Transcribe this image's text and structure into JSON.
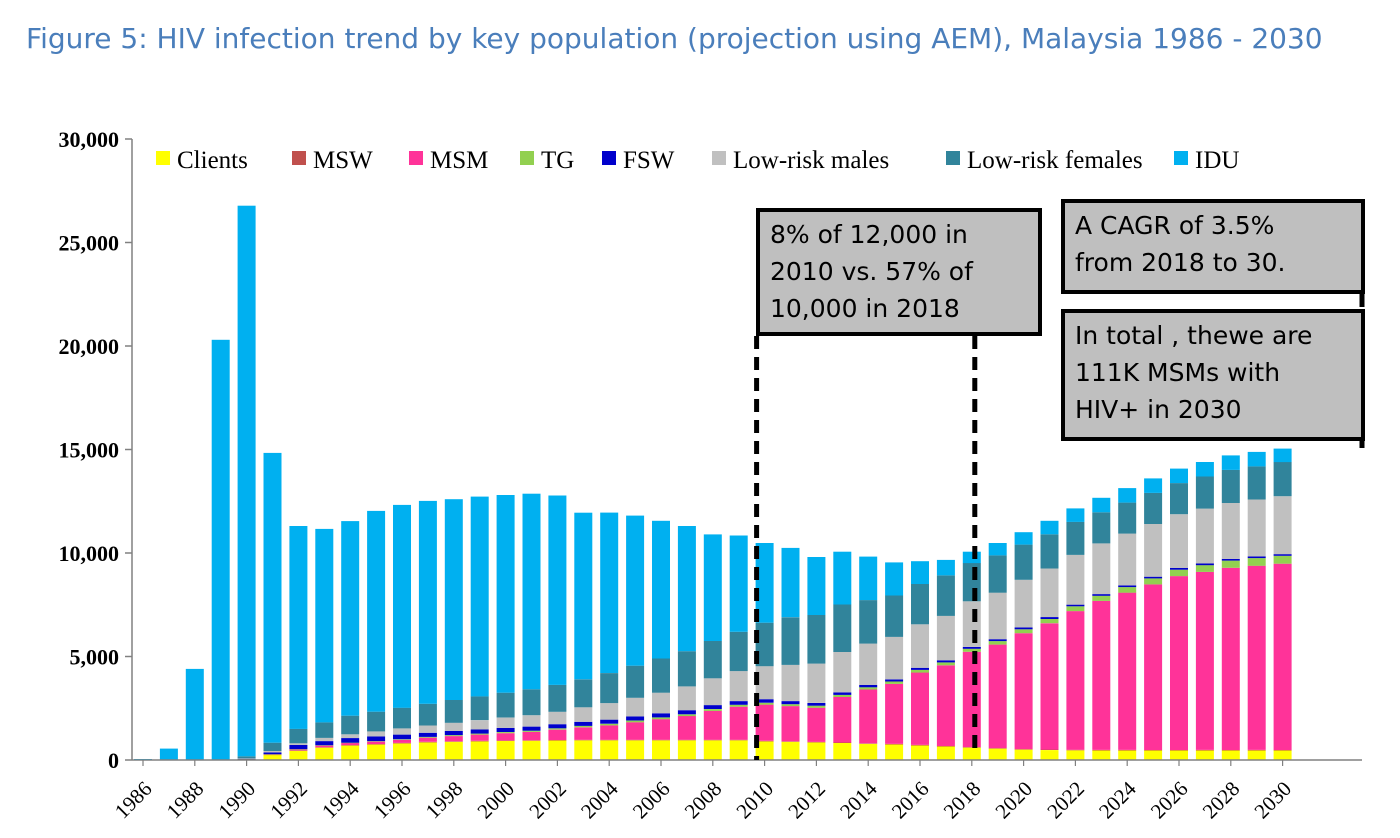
{
  "title": "Figure 5: HIV infection trend by key population (projection using AEM), Malaysia 1986 - 2030",
  "annotations": [
    {
      "lines": [
        "8% of 12,000 in",
        "2010 vs. 57% of",
        "10,000 in 2018"
      ]
    },
    {
      "lines": [
        "A CAGR of 3.5%",
        "from 2018 to 30."
      ]
    },
    {
      "lines": [
        "In total , thewe are",
        "111K MSMs with",
        "HIV+ in 2030"
      ]
    }
  ],
  "chart_data": {
    "type": "bar",
    "stacked": true,
    "title": "Figure 5: HIV infection trend by key population (projection using AEM), Malaysia 1986 - 2030",
    "xlabel": "",
    "ylabel": "",
    "ylim": [
      0,
      30000
    ],
    "yticks": [
      "0",
      "5,000",
      "10,000",
      "15,000",
      "20,000",
      "25,000",
      "30,000"
    ],
    "xticks": [
      "1986",
      "1988",
      "1990",
      "1992",
      "1994",
      "1996",
      "1998",
      "2000",
      "2002",
      "2004",
      "2006",
      "2008",
      "2010",
      "2012",
      "2014",
      "2016",
      "2018",
      "2020",
      "2022",
      "2024",
      "2026",
      "2028",
      "2030"
    ],
    "grid": false,
    "legend_position": "top",
    "categories": [
      "1986",
      "1987",
      "1988",
      "1989",
      "1990",
      "1991",
      "1992",
      "1993",
      "1994",
      "1995",
      "1996",
      "1997",
      "1998",
      "1999",
      "2000",
      "2001",
      "2002",
      "2003",
      "2004",
      "2005",
      "2006",
      "2007",
      "2008",
      "2009",
      "2010",
      "2011",
      "2012",
      "2013",
      "2014",
      "2015",
      "2016",
      "2017",
      "2018",
      "2019",
      "2020",
      "2021",
      "2022",
      "2023",
      "2024",
      "2025",
      "2026",
      "2027",
      "2028",
      "2029",
      "2030"
    ],
    "series": [
      {
        "name": "Clients",
        "color": "#ffff00",
        "values": [
          0,
          0,
          0,
          0,
          50,
          250,
          450,
          600,
          700,
          750,
          800,
          850,
          880,
          900,
          920,
          930,
          940,
          950,
          950,
          950,
          950,
          950,
          950,
          950,
          900,
          880,
          850,
          820,
          780,
          750,
          700,
          650,
          600,
          550,
          500,
          480,
          470,
          460,
          460,
          460,
          460,
          460,
          460,
          460,
          460
        ]
      },
      {
        "name": "MSW",
        "color": "#c0504d",
        "values": [
          0,
          0,
          0,
          0,
          0,
          10,
          15,
          20,
          20,
          20,
          25,
          25,
          25,
          25,
          25,
          25,
          25,
          25,
          25,
          25,
          25,
          25,
          25,
          25,
          25,
          25,
          25,
          25,
          25,
          25,
          25,
          25,
          25,
          25,
          25,
          25,
          25,
          25,
          25,
          25,
          25,
          25,
          25,
          25,
          25
        ]
      },
      {
        "name": "MSM",
        "color": "#ff3399",
        "values": [
          0,
          0,
          0,
          0,
          0,
          20,
          50,
          80,
          100,
          120,
          150,
          200,
          250,
          300,
          350,
          400,
          500,
          600,
          700,
          850,
          1000,
          1150,
          1400,
          1600,
          1750,
          1700,
          1650,
          2200,
          2600,
          2900,
          3500,
          3900,
          4600,
          5000,
          5600,
          6100,
          6700,
          7200,
          7600,
          8000,
          8400,
          8600,
          8800,
          8900,
          9000
        ]
      },
      {
        "name": "TG",
        "color": "#92d050",
        "values": [
          0,
          0,
          0,
          0,
          0,
          5,
          10,
          15,
          20,
          25,
          30,
          40,
          45,
          50,
          55,
          60,
          65,
          70,
          75,
          80,
          80,
          80,
          85,
          90,
          90,
          90,
          100,
          100,
          110,
          120,
          130,
          140,
          150,
          170,
          190,
          210,
          230,
          250,
          270,
          290,
          310,
          330,
          350,
          370,
          380
        ]
      },
      {
        "name": "FSW",
        "color": "#0000cc",
        "values": [
          0,
          0,
          0,
          0,
          10,
          80,
          200,
          200,
          220,
          220,
          220,
          200,
          200,
          200,
          200,
          200,
          200,
          200,
          200,
          200,
          200,
          200,
          190,
          180,
          170,
          150,
          130,
          120,
          110,
          100,
          100,
          100,
          90,
          90,
          90,
          90,
          80,
          80,
          80,
          80,
          80,
          80,
          80,
          80,
          80
        ]
      },
      {
        "name": "Low-risk males",
        "color": "#c0c0c0",
        "values": [
          0,
          0,
          0,
          0,
          20,
          70,
          80,
          150,
          180,
          250,
          300,
          350,
          400,
          450,
          500,
          550,
          600,
          700,
          800,
          900,
          1000,
          1150,
          1300,
          1450,
          1600,
          1750,
          1900,
          1950,
          2000,
          2050,
          2100,
          2150,
          2200,
          2250,
          2300,
          2350,
          2400,
          2450,
          2500,
          2550,
          2600,
          2650,
          2700,
          2750,
          2800
        ]
      },
      {
        "name": "Low-risk females",
        "color": "#31849b",
        "values": [
          0,
          0,
          0,
          0,
          100,
          400,
          700,
          750,
          900,
          950,
          1000,
          1050,
          1100,
          1150,
          1200,
          1250,
          1300,
          1350,
          1450,
          1550,
          1650,
          1700,
          1800,
          1900,
          2100,
          2300,
          2350,
          2300,
          2100,
          2000,
          1950,
          1950,
          1850,
          1800,
          1700,
          1650,
          1600,
          1500,
          1500,
          1500,
          1500,
          1550,
          1600,
          1600,
          1650
        ]
      },
      {
        "name": "IDU",
        "color": "#00b0f0",
        "values": [
          50,
          550,
          4400,
          20300,
          26600,
          14000,
          9800,
          9350,
          9400,
          9700,
          9800,
          9800,
          9700,
          9650,
          9550,
          9450,
          9150,
          8050,
          7750,
          7250,
          6650,
          6050,
          5150,
          4650,
          3850,
          3350,
          2800,
          2550,
          2100,
          1600,
          1100,
          750,
          550,
          600,
          600,
          650,
          650,
          700,
          700,
          700,
          700,
          700,
          700,
          700,
          650
        ]
      }
    ]
  }
}
